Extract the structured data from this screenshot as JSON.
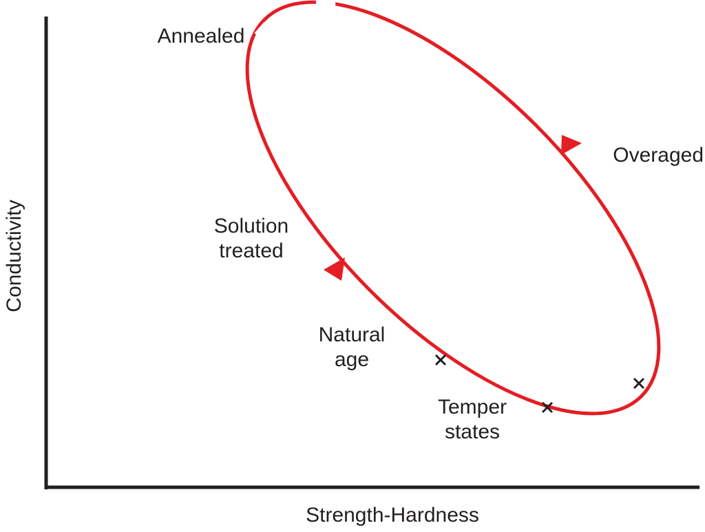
{
  "axes": {
    "y_label": "Conductivity",
    "x_label": "Strength-Hardness"
  },
  "labels": {
    "annealed": "Annealed",
    "overaged": "Overaged",
    "solution_treated": [
      "Solution",
      "treated"
    ],
    "natural_age": [
      "Natural",
      "age"
    ],
    "temper_states": [
      "Temper",
      "states"
    ]
  }
}
